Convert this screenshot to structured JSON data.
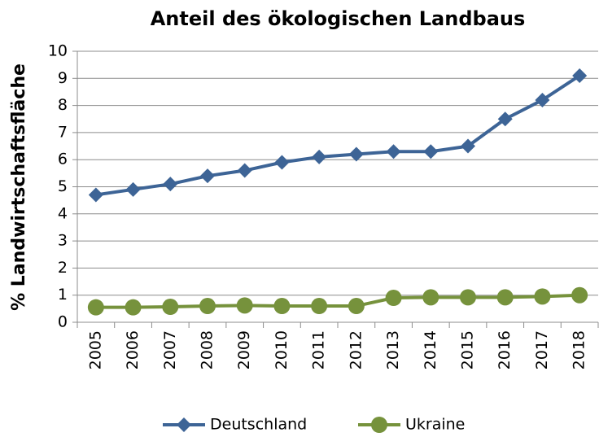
{
  "chart_data": {
    "type": "line",
    "title": "Anteil des ökologischen Landbaus",
    "y_label": "% Landwirtschaftsfläche",
    "categories": [
      "2005",
      "2006",
      "2007",
      "2008",
      "2009",
      "2010",
      "2011",
      "2012",
      "2013",
      "2014",
      "2015",
      "2016",
      "2017",
      "2018"
    ],
    "series": [
      {
        "name": "Deutschland",
        "color": "#3d6496",
        "marker": "diamond",
        "values": [
          4.7,
          4.9,
          5.1,
          5.4,
          5.6,
          5.9,
          6.1,
          6.2,
          6.3,
          6.3,
          6.5,
          7.5,
          8.2,
          9.1
        ]
      },
      {
        "name": "Ukraine",
        "color": "#76923c",
        "marker": "circle",
        "values": [
          0.55,
          0.55,
          0.57,
          0.6,
          0.62,
          0.6,
          0.6,
          0.6,
          0.9,
          0.92,
          0.92,
          0.92,
          0.95,
          1.0
        ]
      }
    ],
    "ylim": [
      0,
      10
    ],
    "yticks": [
      0,
      1,
      2,
      3,
      4,
      5,
      6,
      7,
      8,
      9,
      10
    ],
    "grid": true,
    "legend": "bottom"
  }
}
